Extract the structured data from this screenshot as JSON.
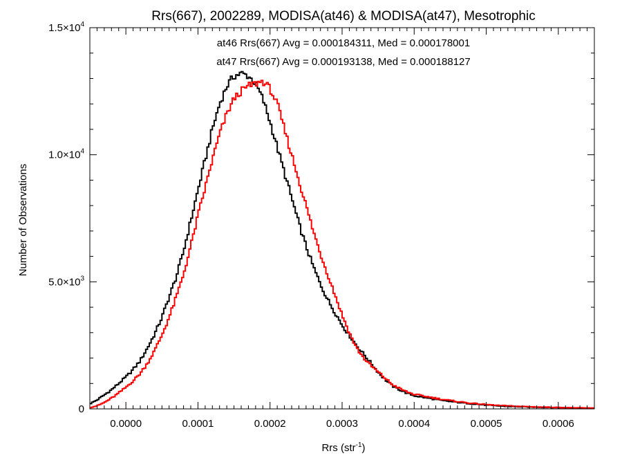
{
  "chart_data": {
    "type": "line",
    "title": "Rrs(667), 2002289, MODISA(at46) & MODISA(at47), Mesotrophic",
    "xlabel": {
      "base": "Rrs (str",
      "sup": "-1",
      "tail": ")"
    },
    "ylabel": "Number of Observations",
    "xlim": [
      -5e-05,
      0.00065
    ],
    "ylim": [
      0,
      15000
    ],
    "x_ticks": [
      0.0,
      0.0001,
      0.0002,
      0.0003,
      0.0004,
      0.0005,
      0.0006
    ],
    "x_tick_labels": [
      "0.0000",
      "0.0001",
      "0.0002",
      "0.0003",
      "0.0004",
      "0.0005",
      "0.0006"
    ],
    "y_ticks": [
      0,
      5000,
      10000,
      15000
    ],
    "y_tick_labels": [
      {
        "text": "0",
        "mant": "",
        "exp": ""
      },
      {
        "text": "",
        "mant": "5.0×10",
        "exp": "3"
      },
      {
        "text": "",
        "mant": "1.0×10",
        "exp": "4"
      },
      {
        "text": "",
        "mant": "1.5×10",
        "exp": "4"
      }
    ],
    "grid": false,
    "series": [
      {
        "name": "at46",
        "color": "#000000",
        "annotation": "at46 Rrs(667) Avg = 0.000184311, Med = 0.000178001",
        "x": [
          -5e-05,
          -4e-05,
          -3e-05,
          -2e-05,
          -1e-05,
          0.0,
          1e-05,
          2e-05,
          3e-05,
          4e-05,
          5e-05,
          6e-05,
          7e-05,
          8e-05,
          9e-05,
          0.0001,
          0.00011,
          0.00012,
          0.00013,
          0.00014,
          0.00015,
          0.00016,
          0.00017,
          0.00018,
          0.00019,
          0.0002,
          0.00021,
          0.00022,
          0.00023,
          0.00024,
          0.00025,
          0.00026,
          0.00027,
          0.00028,
          0.00029,
          0.0003,
          0.00031,
          0.00032,
          0.00033,
          0.00034,
          0.00035,
          0.00036,
          0.00037,
          0.00038,
          0.00039,
          0.0004,
          0.00042,
          0.00044,
          0.00046,
          0.00048,
          0.0005,
          0.00052,
          0.00055,
          0.00058,
          0.00061,
          0.00065
        ],
        "y": [
          200,
          350,
          550,
          750,
          1000,
          1250,
          1550,
          1900,
          2400,
          2950,
          3600,
          4400,
          5200,
          6200,
          7400,
          8600,
          9800,
          11000,
          12000,
          12700,
          13100,
          13200,
          13100,
          12800,
          12200,
          11300,
          10300,
          9300,
          8300,
          7300,
          6400,
          5600,
          4900,
          4300,
          3800,
          3300,
          2900,
          2500,
          2150,
          1800,
          1450,
          1150,
          900,
          750,
          620,
          520,
          420,
          320,
          260,
          200,
          150,
          110,
          80,
          60,
          45,
          30
        ]
      },
      {
        "name": "at47",
        "color": "#ff0000",
        "annotation": "at47 Rrs(667) Avg = 0.000193138, Med = 0.000188127",
        "x": [
          -5e-05,
          -4e-05,
          -3e-05,
          -2e-05,
          -1e-05,
          0.0,
          1e-05,
          2e-05,
          3e-05,
          4e-05,
          5e-05,
          6e-05,
          7e-05,
          8e-05,
          9e-05,
          0.0001,
          0.00011,
          0.00012,
          0.00013,
          0.00014,
          0.00015,
          0.00016,
          0.00017,
          0.00018,
          0.00019,
          0.0002,
          0.00021,
          0.00022,
          0.00023,
          0.00024,
          0.00025,
          0.00026,
          0.00027,
          0.00028,
          0.00029,
          0.0003,
          0.00031,
          0.00032,
          0.00033,
          0.00034,
          0.00035,
          0.00036,
          0.00037,
          0.00038,
          0.00039,
          0.0004,
          0.00042,
          0.00044,
          0.00046,
          0.00048,
          0.0005,
          0.00052,
          0.00055,
          0.00058,
          0.00061,
          0.00065
        ],
        "y": [
          50,
          120,
          250,
          420,
          620,
          850,
          1100,
          1400,
          1800,
          2300,
          2900,
          3600,
          4400,
          5300,
          6400,
          7600,
          8700,
          9800,
          10800,
          11600,
          12200,
          12500,
          12700,
          12800,
          12900,
          12600,
          12000,
          11000,
          10000,
          9000,
          8000,
          7000,
          6100,
          5300,
          4500,
          3700,
          3000,
          2400,
          2000,
          1700,
          1450,
          1200,
          950,
          800,
          670,
          570,
          470,
          370,
          290,
          220,
          170,
          130,
          95,
          70,
          50,
          30
        ]
      }
    ]
  }
}
